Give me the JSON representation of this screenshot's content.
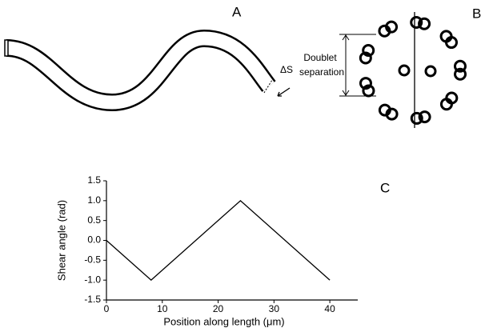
{
  "panel_labels": [
    "A",
    "B"
  ],
  "diagram": {
    "delta_s": "ΔS",
    "doublet_line1": "Doublet",
    "doublet_line2": "separation"
  },
  "chart_data": {
    "type": "line",
    "panel_label": "C",
    "x_label": "Position along length (μm)",
    "y_label": "Shear angle (rad)",
    "x": [
      0,
      8,
      24,
      40
    ],
    "series": [
      {
        "color": "#000000",
        "values": [
          0,
          -1,
          1,
          -1
        ]
      }
    ],
    "xlim": [
      0,
      45
    ],
    "ylim": [
      -1.5,
      1.5
    ],
    "xticks": [
      0,
      10,
      20,
      30,
      40
    ],
    "yticks": [
      1.5,
      {
        "value": 1,
        "label": "1.0"
      },
      0.5,
      {
        "value": 0,
        "label": "0.0"
      },
      -0.5,
      {
        "value": -1,
        "label": "-1.0"
      },
      -1.5
    ],
    "grid": false
  }
}
